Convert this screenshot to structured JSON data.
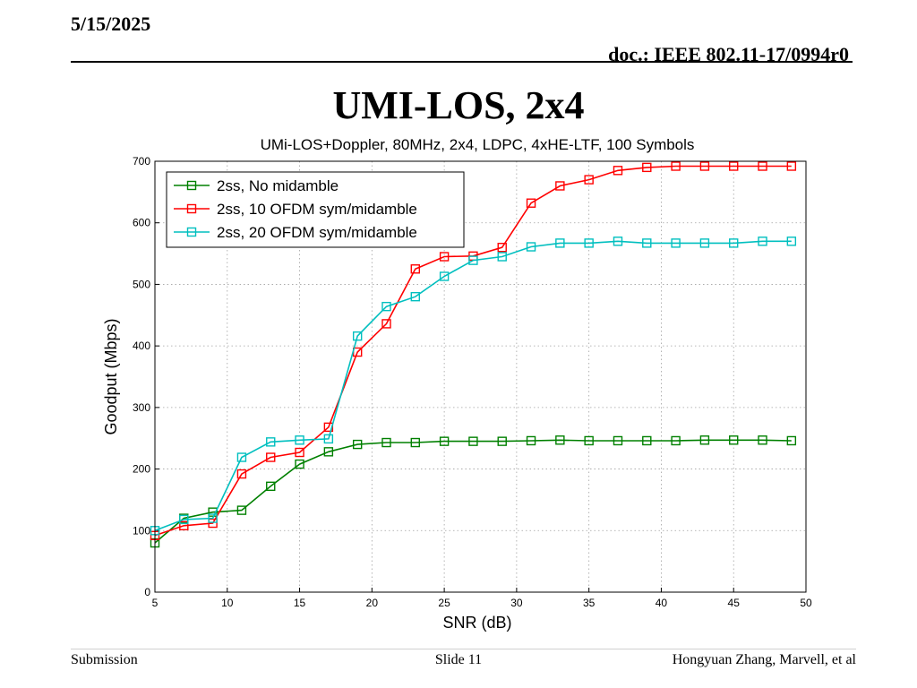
{
  "header": {
    "date": "5/15/2025",
    "doc": "doc.: IEEE 802.11-17/0994r0"
  },
  "slide": {
    "title": "UMI-LOS, 2x4"
  },
  "footer": {
    "left": "Submission",
    "center": "Slide 11",
    "right": "Hongyuan Zhang, Marvell, et al"
  },
  "chart_data": {
    "type": "line",
    "title": "UMi-LOS+Doppler, 80MHz, 2x4, LDPC, 4xHE-LTF, 100 Symbols",
    "xlabel": "SNR (dB)",
    "ylabel": "Goodput (Mbps)",
    "xlim": [
      5,
      50
    ],
    "ylim": [
      0,
      700
    ],
    "xticks": [
      5,
      10,
      15,
      20,
      25,
      30,
      35,
      40,
      45,
      50
    ],
    "yticks": [
      0,
      100,
      200,
      300,
      400,
      500,
      600,
      700
    ],
    "grid": true,
    "legend": "top-left",
    "x": [
      5,
      7,
      9,
      11,
      13,
      15,
      17,
      19,
      21,
      23,
      25,
      27,
      29,
      31,
      33,
      35,
      37,
      39,
      41,
      43,
      45,
      47,
      49
    ],
    "series": [
      {
        "name": "2ss, No midamble",
        "color": "#008000",
        "values": [
          80,
          120,
          130,
          133,
          172,
          208,
          228,
          240,
          243,
          243,
          245,
          245,
          245,
          246,
          247,
          246,
          246,
          246,
          246,
          247,
          247,
          247,
          246
        ]
      },
      {
        "name": "2ss, 10 OFDM sym/midamble",
        "color": "#ff0000",
        "values": [
          92,
          108,
          112,
          192,
          219,
          227,
          268,
          390,
          436,
          525,
          545,
          546,
          560,
          632,
          660,
          670,
          685,
          690,
          692,
          692,
          692,
          692,
          692
        ]
      },
      {
        "name": "2ss, 20 OFDM sym/midamble",
        "color": "#00bfbf",
        "values": [
          100,
          118,
          120,
          219,
          244,
          247,
          249,
          416,
          464,
          480,
          513,
          539,
          545,
          561,
          567,
          567,
          570,
          567,
          567,
          567,
          567,
          570,
          570
        ]
      }
    ]
  }
}
